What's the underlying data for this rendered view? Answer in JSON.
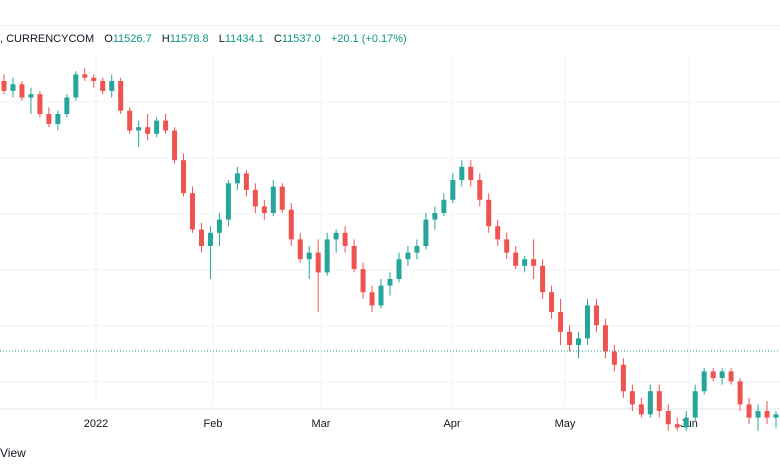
{
  "legend": {
    "symbol": ", CURRENCYCOM",
    "o_label": "O",
    "o_value": "11526.7",
    "h_label": "H",
    "h_value": "11578.8",
    "l_label": "L",
    "l_value": "11434.1",
    "c_label": "C",
    "c_value": "11537.0",
    "change": "+20.1 (+0.17%)"
  },
  "footer": {
    "text": "View"
  },
  "colors": {
    "up": "#26a69a",
    "down": "#ef5350",
    "grid": "#f0f3fa",
    "last_price_line": "#26a69a"
  },
  "chart_data": {
    "type": "candlestick",
    "x_tick_labels": [
      "2022",
      "Feb",
      "Mar",
      "Apr",
      "May",
      "Jun"
    ],
    "last_price": 11537.0,
    "ohlc_approx_relative": [
      [
        0.9,
        0.92,
        0.86,
        0.87
      ],
      [
        0.87,
        0.91,
        0.85,
        0.89
      ],
      [
        0.89,
        0.9,
        0.84,
        0.85
      ],
      [
        0.85,
        0.88,
        0.8,
        0.86
      ],
      [
        0.86,
        0.87,
        0.79,
        0.8
      ],
      [
        0.8,
        0.82,
        0.76,
        0.77
      ],
      [
        0.77,
        0.81,
        0.75,
        0.8
      ],
      [
        0.8,
        0.86,
        0.79,
        0.85
      ],
      [
        0.85,
        0.93,
        0.84,
        0.92
      ],
      [
        0.92,
        0.94,
        0.9,
        0.91
      ],
      [
        0.91,
        0.92,
        0.88,
        0.9
      ],
      [
        0.9,
        0.91,
        0.86,
        0.87
      ],
      [
        0.87,
        0.92,
        0.85,
        0.9
      ],
      [
        0.9,
        0.91,
        0.8,
        0.81
      ],
      [
        0.81,
        0.82,
        0.74,
        0.75
      ],
      [
        0.75,
        0.78,
        0.7,
        0.76
      ],
      [
        0.76,
        0.8,
        0.72,
        0.74
      ],
      [
        0.74,
        0.79,
        0.73,
        0.78
      ],
      [
        0.78,
        0.8,
        0.74,
        0.75
      ],
      [
        0.75,
        0.76,
        0.65,
        0.66
      ],
      [
        0.66,
        0.68,
        0.55,
        0.56
      ],
      [
        0.56,
        0.58,
        0.44,
        0.45
      ],
      [
        0.45,
        0.47,
        0.38,
        0.4
      ],
      [
        0.4,
        0.46,
        0.3,
        0.44
      ],
      [
        0.44,
        0.5,
        0.4,
        0.48
      ],
      [
        0.48,
        0.6,
        0.46,
        0.59
      ],
      [
        0.59,
        0.64,
        0.57,
        0.62
      ],
      [
        0.62,
        0.63,
        0.55,
        0.57
      ],
      [
        0.57,
        0.59,
        0.5,
        0.52
      ],
      [
        0.52,
        0.54,
        0.48,
        0.5
      ],
      [
        0.5,
        0.6,
        0.49,
        0.58
      ],
      [
        0.58,
        0.59,
        0.5,
        0.51
      ],
      [
        0.51,
        0.53,
        0.4,
        0.42
      ],
      [
        0.42,
        0.44,
        0.35,
        0.36
      ],
      [
        0.36,
        0.4,
        0.3,
        0.38
      ],
      [
        0.38,
        0.42,
        0.2,
        0.32
      ],
      [
        0.32,
        0.44,
        0.31,
        0.42
      ],
      [
        0.42,
        0.45,
        0.38,
        0.44
      ],
      [
        0.44,
        0.46,
        0.38,
        0.4
      ],
      [
        0.4,
        0.42,
        0.32,
        0.33
      ],
      [
        0.33,
        0.35,
        0.24,
        0.26
      ],
      [
        0.26,
        0.28,
        0.2,
        0.22
      ],
      [
        0.22,
        0.3,
        0.21,
        0.28
      ],
      [
        0.28,
        0.32,
        0.25,
        0.3
      ],
      [
        0.3,
        0.38,
        0.29,
        0.36
      ],
      [
        0.36,
        0.4,
        0.34,
        0.38
      ],
      [
        0.38,
        0.42,
        0.36,
        0.4
      ],
      [
        0.4,
        0.5,
        0.39,
        0.48
      ],
      [
        0.48,
        0.52,
        0.45,
        0.5
      ],
      [
        0.5,
        0.56,
        0.49,
        0.54
      ],
      [
        0.54,
        0.62,
        0.53,
        0.6
      ],
      [
        0.6,
        0.66,
        0.58,
        0.64
      ],
      [
        0.64,
        0.66,
        0.58,
        0.6
      ],
      [
        0.6,
        0.62,
        0.52,
        0.54
      ],
      [
        0.54,
        0.56,
        0.44,
        0.46
      ],
      [
        0.46,
        0.48,
        0.4,
        0.42
      ],
      [
        0.42,
        0.44,
        0.36,
        0.38
      ],
      [
        0.38,
        0.4,
        0.33,
        0.34
      ],
      [
        0.34,
        0.37,
        0.32,
        0.36
      ],
      [
        0.36,
        0.42,
        0.3,
        0.34
      ],
      [
        0.34,
        0.36,
        0.24,
        0.26
      ],
      [
        0.26,
        0.28,
        0.18,
        0.2
      ],
      [
        0.2,
        0.24,
        0.1,
        0.14
      ],
      [
        0.14,
        0.16,
        0.08,
        0.1
      ],
      [
        0.1,
        0.14,
        0.06,
        0.12
      ],
      [
        0.12,
        0.24,
        0.1,
        0.22
      ],
      [
        0.22,
        0.24,
        0.14,
        0.16
      ],
      [
        0.16,
        0.18,
        0.06,
        0.08
      ],
      [
        0.08,
        0.1,
        0.02,
        0.04
      ],
      [
        0.04,
        0.06,
        -0.06,
        -0.04
      ],
      [
        -0.04,
        -0.02,
        -0.1,
        -0.08
      ],
      [
        -0.08,
        -0.06,
        -0.12,
        -0.11
      ],
      [
        -0.11,
        -0.02,
        -0.12,
        -0.04
      ],
      [
        -0.04,
        -0.02,
        -0.12,
        -0.1
      ],
      [
        -0.1,
        -0.08,
        -0.16,
        -0.14
      ],
      [
        -0.14,
        -0.12,
        -0.16,
        -0.15
      ],
      [
        -0.15,
        -0.1,
        -0.16,
        -0.12
      ],
      [
        -0.12,
        -0.02,
        -0.13,
        -0.04
      ],
      [
        -0.04,
        0.03,
        -0.05,
        0.02
      ],
      [
        0.02,
        0.03,
        -0.01,
        0.0
      ],
      [
        0.0,
        0.03,
        -0.02,
        0.02
      ],
      [
        0.02,
        0.03,
        -0.02,
        -0.01
      ],
      [
        -0.01,
        0.0,
        -0.1,
        -0.08
      ],
      [
        -0.08,
        -0.06,
        -0.14,
        -0.12
      ],
      [
        -0.12,
        -0.08,
        -0.16,
        -0.1
      ],
      [
        -0.1,
        -0.07,
        -0.14,
        -0.12
      ],
      [
        -0.12,
        -0.1,
        -0.15,
        -0.11
      ]
    ]
  }
}
